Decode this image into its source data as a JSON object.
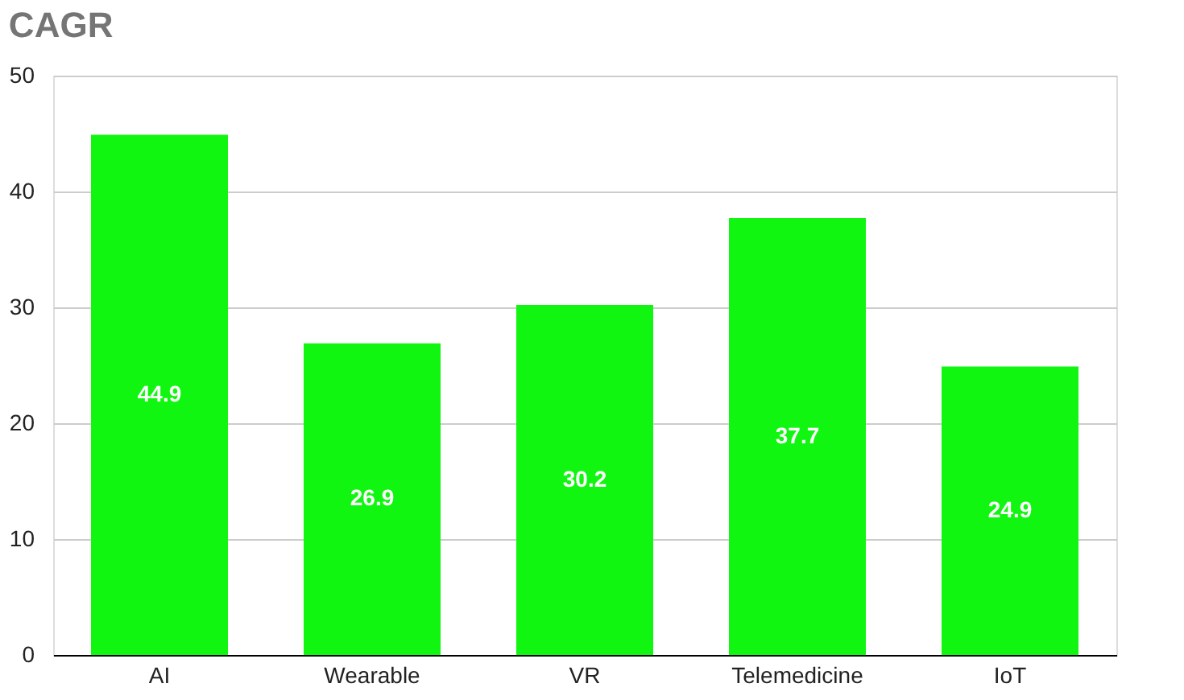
{
  "chart_data": {
    "type": "bar",
    "title": "CAGR",
    "categories": [
      "AI",
      "Wearable",
      "VR",
      "Telemedicine",
      "IoT"
    ],
    "values": [
      44.9,
      26.9,
      30.2,
      37.7,
      24.9
    ],
    "color": "#11f611",
    "ylim": [
      0,
      50
    ],
    "yticks": [
      0,
      10,
      20,
      30,
      40,
      50
    ],
    "grid": "y",
    "data_labels": true
  }
}
